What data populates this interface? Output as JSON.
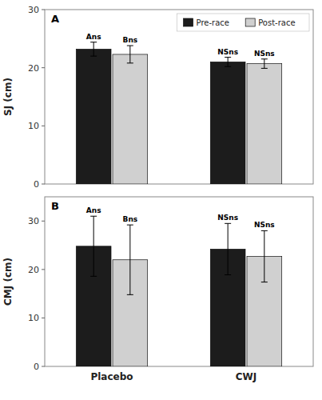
{
  "chart_data": [
    {
      "type": "bar",
      "title": "A",
      "y_label": "SJ (cm)",
      "categories": [
        "Placebo",
        "CWJ"
      ],
      "ylim": [
        0,
        30
      ],
      "yticks": [
        0,
        10,
        20,
        30
      ],
      "legend": "upper right",
      "tick_labels": "y",
      "series": [
        {
          "name": "Pre-race",
          "color": "#1c1c1c",
          "values": [
            23.2,
            21.0
          ],
          "errors": [
            1.2,
            0.8
          ],
          "annotations": [
            "Ans",
            "NSns"
          ]
        },
        {
          "name": "Post-race",
          "color": "#d0d0d0",
          "values": [
            22.3,
            20.7
          ],
          "errors": [
            1.5,
            0.8
          ],
          "annotations": [
            "Bns",
            "NSns"
          ]
        }
      ]
    },
    {
      "type": "bar",
      "title": "B",
      "y_label": "CMJ (cm)",
      "categories": [
        "Placebo",
        "CWJ"
      ],
      "ylim": [
        0,
        35
      ],
      "yticks": [
        0,
        10,
        20,
        30
      ],
      "series": [
        {
          "name": "Pre-race",
          "color": "#1c1c1c",
          "values": [
            24.8,
            24.2
          ],
          "errors": [
            6.2,
            5.3
          ],
          "annotations": [
            "Ans",
            "NSns"
          ]
        },
        {
          "name": "Post-race",
          "color": "#d0d0d0",
          "values": [
            22.0,
            22.7
          ],
          "errors": [
            7.2,
            5.3
          ],
          "annotations": [
            "Bns",
            "NSns"
          ]
        }
      ]
    }
  ]
}
